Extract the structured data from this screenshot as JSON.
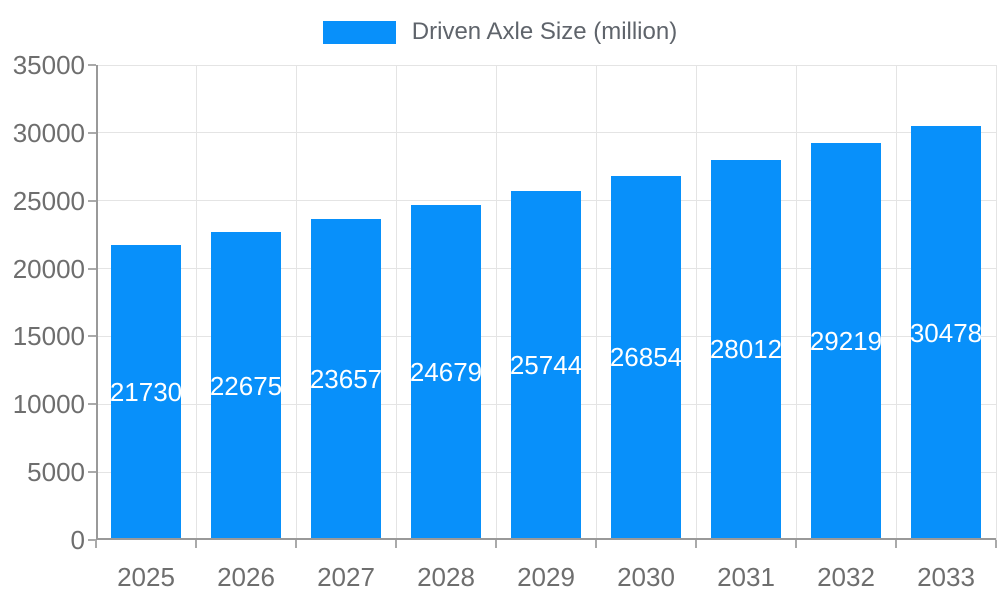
{
  "legend": {
    "label": "Driven Axle Size (million)"
  },
  "colors": {
    "bar": "#0890fa",
    "grid": "#e4e4e4",
    "axis": "#999999",
    "tick": "#aaaaaa",
    "tick_label": "#6e6e6e",
    "value_label": "#ffffff",
    "legend_text": "#5f646b",
    "background": "#ffffff"
  },
  "chart_data": {
    "type": "bar",
    "title": "",
    "xlabel": "",
    "ylabel": "",
    "categories": [
      "2025",
      "2026",
      "2027",
      "2028",
      "2029",
      "2030",
      "2031",
      "2032",
      "2033"
    ],
    "series": [
      {
        "name": "Driven Axle Size (million)",
        "values": [
          21730,
          22675,
          23657,
          24679,
          25744,
          26854,
          28012,
          29219,
          30478
        ]
      }
    ],
    "ylim": [
      0,
      35000
    ],
    "ytick_step": 5000,
    "y_ticks": [
      0,
      5000,
      10000,
      15000,
      20000,
      25000,
      30000,
      35000
    ],
    "grid": true,
    "legend_position": "top-center",
    "value_labels": "inside-vertical-center"
  }
}
